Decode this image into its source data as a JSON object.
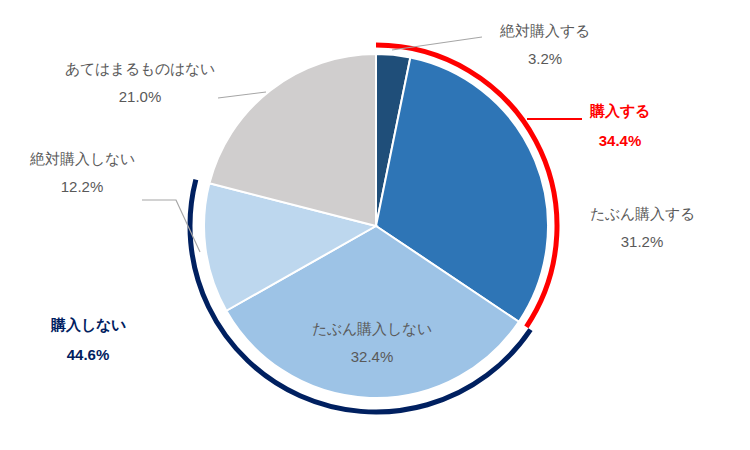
{
  "chart_data": {
    "type": "pie",
    "categories": [
      "絶対購入する",
      "たぶん購入する",
      "たぶん購入しない",
      "絶対購入しない",
      "あてはまるものはない"
    ],
    "values": [
      3.2,
      31.2,
      32.4,
      12.2,
      21.0
    ],
    "value_labels": [
      "3.2%",
      "31.2%",
      "32.4%",
      "12.2%",
      "21.0%"
    ],
    "colors": [
      "#1f4e79",
      "#2e75b6",
      "#9dc3e6",
      "#bdd7ee",
      "#d0cece"
    ],
    "data_labels": true,
    "groups": {
      "labels": [
        "購入する",
        "購入しない"
      ],
      "values": [
        34.4,
        44.6
      ],
      "value_labels": [
        "34.4%",
        "44.6%"
      ],
      "colors": [
        "#ff0000",
        "#002060"
      ]
    }
  }
}
